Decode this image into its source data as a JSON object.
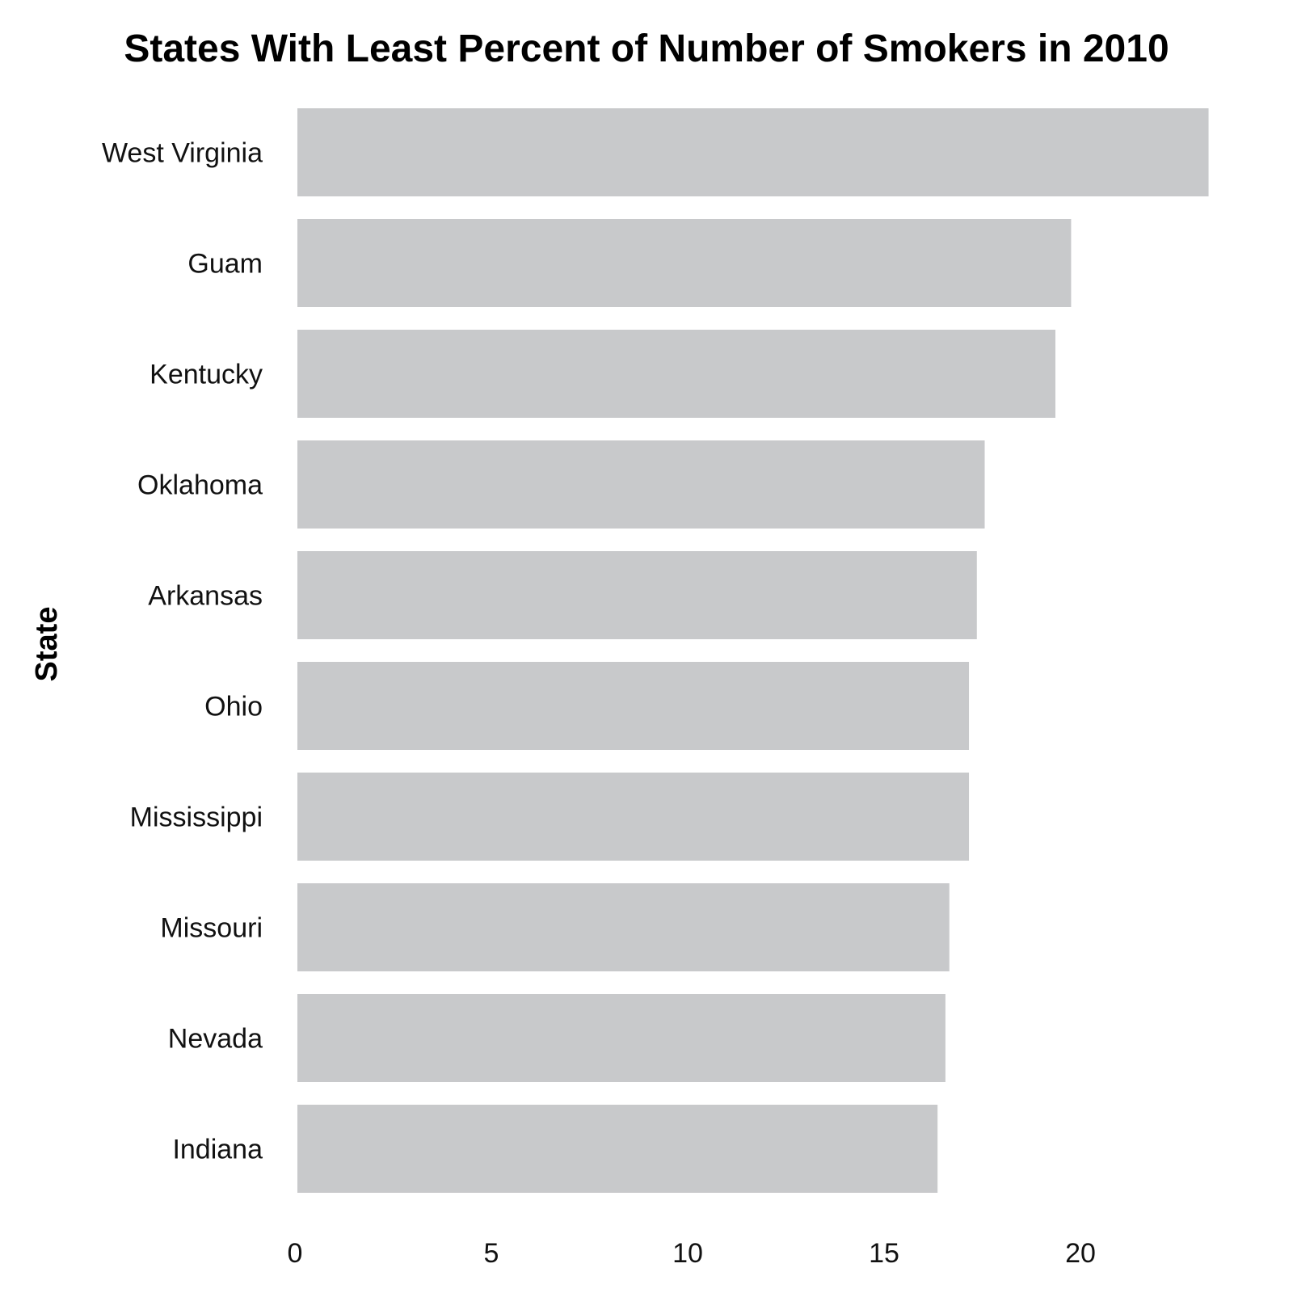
{
  "chart_data": {
    "type": "bar",
    "orientation": "horizontal",
    "title": "States With Least Percent of Number of Smokers in 2010",
    "xlabel": "",
    "ylabel": "State",
    "categories": [
      "West Virginia",
      "Guam",
      "Kentucky",
      "Oklahoma",
      "Arkansas",
      "Ohio",
      "Mississippi",
      "Missouri",
      "Nevada",
      "Indiana"
    ],
    "values": [
      23.2,
      19.7,
      19.3,
      17.5,
      17.3,
      17.1,
      17.1,
      16.6,
      16.5,
      16.3
    ],
    "xticks": [
      "0",
      "5",
      "10",
      "15",
      "20"
    ],
    "xlim": [
      0,
      23.2
    ],
    "grid": false,
    "bar_color": "#c8c9cb"
  }
}
